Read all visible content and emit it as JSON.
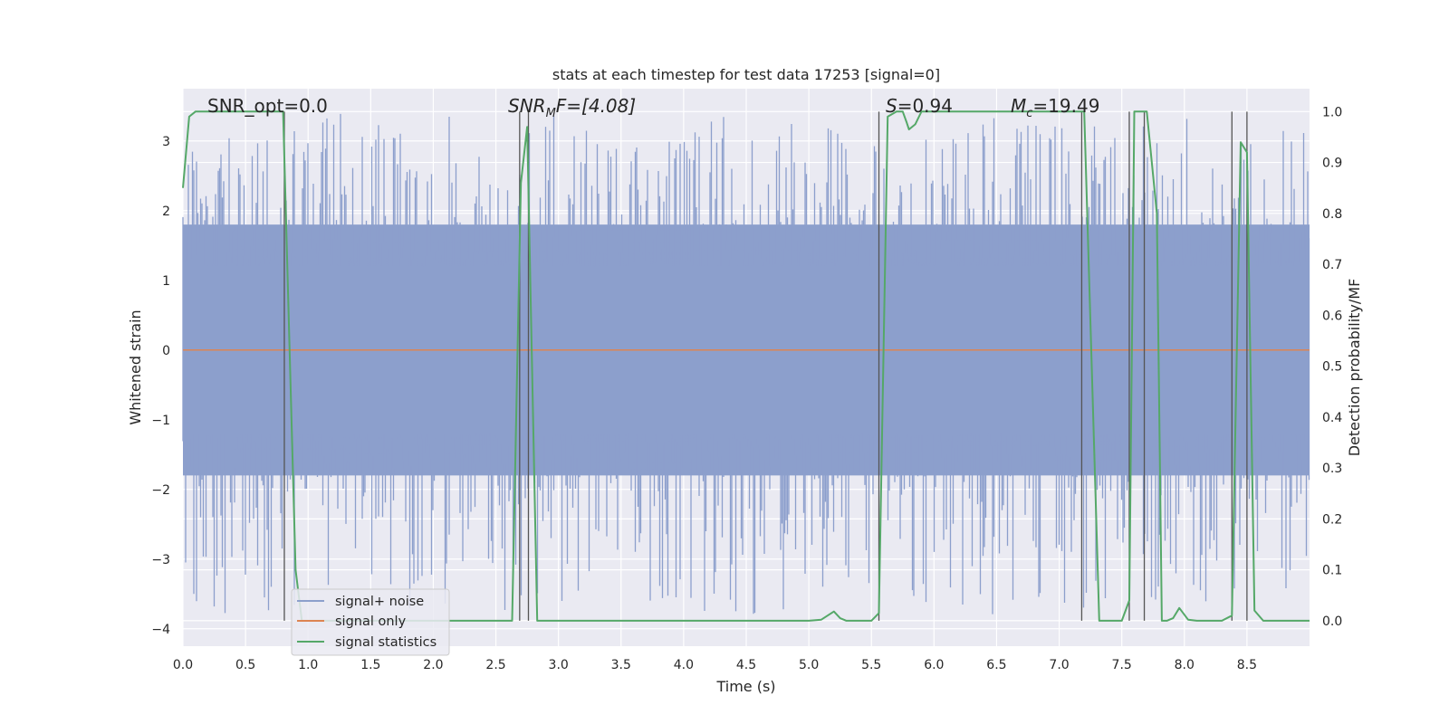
{
  "chart_data": {
    "type": "line",
    "title": "stats at each timestep for test data 17253 [signal=0]",
    "xlabel": "Time (s)",
    "ylabel_left": "Whitened strain",
    "ylabel_right": "Detection probability/MF",
    "xlim": [
      0.0,
      9.0
    ],
    "ylim_left": [
      -4.25,
      3.75
    ],
    "ylim_right": [
      -0.05,
      1.045
    ],
    "x_ticks": [
      "0.0",
      "0.5",
      "1.0",
      "1.5",
      "2.0",
      "2.5",
      "3.0",
      "3.5",
      "4.0",
      "4.5",
      "5.0",
      "5.5",
      "6.0",
      "6.5",
      "7.0",
      "7.5",
      "8.0",
      "8.5"
    ],
    "y_left_ticks": [
      "3",
      "2",
      "1",
      "0",
      "−1",
      "−2",
      "−3",
      "−4"
    ],
    "y_right_ticks": [
      "1.0",
      "0.9",
      "0.8",
      "0.7",
      "0.6",
      "0.5",
      "0.4",
      "0.3",
      "0.2",
      "0.1",
      "0.0"
    ],
    "grid": true,
    "legend_position": "lower-left",
    "series": [
      {
        "name": "signal+ noise",
        "color": "#8c9fcc",
        "axis": "left",
        "description_values": "whitened strain noise, approx range -3.8 to 3.4",
        "envelope": {
          "core_low": -1.8,
          "core_high": 1.8,
          "peak_low": -3.8,
          "peak_high": 3.4
        }
      },
      {
        "name": "signal only",
        "color": "#dd8452",
        "axis": "left",
        "x": [
          0.0,
          9.0
        ],
        "y": [
          0.0,
          0.0
        ]
      },
      {
        "name": "signal statistics",
        "color": "#55a868",
        "axis": "right",
        "x": [
          0.0,
          0.05,
          0.1,
          0.2,
          0.3,
          0.4,
          0.5,
          0.6,
          0.7,
          0.8,
          0.85,
          0.9,
          0.95,
          1.0,
          1.5,
          2.0,
          2.5,
          2.63,
          2.7,
          2.75,
          2.83,
          3.0,
          3.5,
          4.0,
          4.5,
          5.0,
          5.1,
          5.2,
          5.25,
          5.3,
          5.5,
          5.56,
          5.63,
          5.7,
          5.75,
          5.78,
          5.8,
          5.85,
          5.9,
          6.0,
          6.5,
          7.0,
          7.2,
          7.32,
          7.4,
          7.5,
          7.56,
          7.6,
          7.65,
          7.7,
          7.78,
          7.82,
          7.86,
          7.91,
          7.96,
          8.03,
          8.1,
          8.2,
          8.3,
          8.38,
          8.45,
          8.5,
          8.56,
          8.63,
          8.7,
          9.0
        ],
        "y": [
          0.85,
          0.99,
          1.0,
          1.0,
          1.0,
          1.0,
          1.0,
          1.0,
          1.0,
          1.0,
          0.55,
          0.1,
          0.0,
          0.0,
          0.0,
          0.0,
          0.0,
          0.0,
          0.86,
          0.97,
          0.0,
          0.0,
          0.0,
          0.0,
          0.0,
          0.0,
          0.002,
          0.018,
          0.005,
          0.0,
          0.0,
          0.015,
          0.99,
          1.0,
          1.0,
          0.98,
          0.965,
          0.975,
          1.0,
          1.0,
          1.0,
          1.0,
          1.0,
          0.0,
          0.0,
          0.0,
          0.04,
          1.0,
          1.0,
          1.0,
          0.8,
          0.0,
          0.0,
          0.005,
          0.025,
          0.002,
          0.0,
          0.0,
          0.0,
          0.01,
          0.94,
          0.92,
          0.02,
          0.0,
          0.0,
          0.0
        ]
      }
    ],
    "vlines": [
      0.81,
      2.69,
      2.76,
      5.56,
      7.18,
      7.56,
      7.68,
      8.38,
      8.5
    ],
    "vline_color": "#555555",
    "annotations": [
      "SNR_opt=0.0",
      "SNR",
      "M",
      "F=[4.08]",
      "S",
      "=0.94",
      "M",
      "c",
      "=19.49"
    ]
  }
}
